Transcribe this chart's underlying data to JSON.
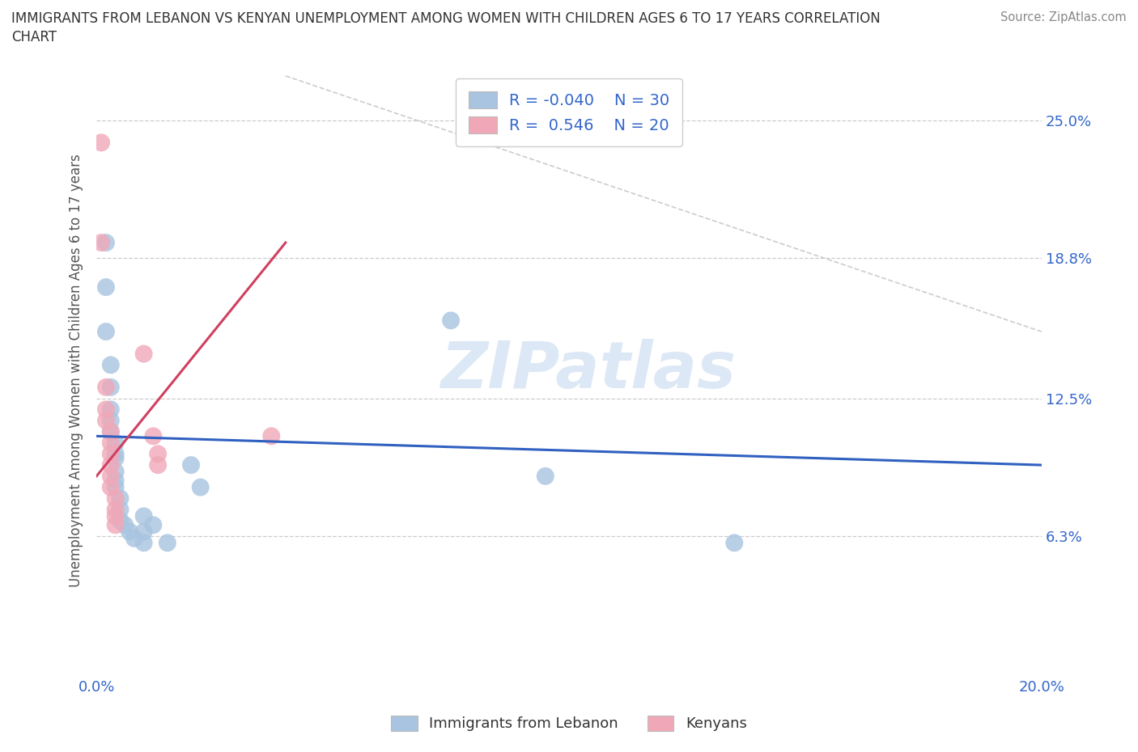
{
  "title": "IMMIGRANTS FROM LEBANON VS KENYAN UNEMPLOYMENT AMONG WOMEN WITH CHILDREN AGES 6 TO 17 YEARS CORRELATION\nCHART",
  "source": "Source: ZipAtlas.com",
  "ylabel": "Unemployment Among Women with Children Ages 6 to 17 years",
  "xlim": [
    0.0,
    0.2
  ],
  "ylim": [
    0.0,
    0.275
  ],
  "xticks": [
    0.0,
    0.05,
    0.1,
    0.15,
    0.2
  ],
  "xticklabels": [
    "0.0%",
    "",
    "",
    "",
    "20.0%"
  ],
  "ytick_positions": [
    0.063,
    0.125,
    0.188,
    0.25
  ],
  "ytick_labels": [
    "6.3%",
    "12.5%",
    "18.8%",
    "25.0%"
  ],
  "watermark": "ZIPatlas",
  "legend_labels": [
    "Immigrants from Lebanon",
    "Kenyans"
  ],
  "color_blue": "#a8c4e0",
  "color_pink": "#f0a8b8",
  "line_blue": "#3060c0",
  "line_pink": "#d04060",
  "R_blue": -0.04,
  "N_blue": 30,
  "R_pink": 0.546,
  "N_pink": 20,
  "blue_line": [
    [
      0.0,
      0.108
    ],
    [
      0.2,
      0.095
    ]
  ],
  "pink_line": [
    [
      0.0,
      0.09
    ],
    [
      0.04,
      0.195
    ]
  ],
  "diag_line": [
    [
      0.04,
      0.27
    ],
    [
      0.2,
      0.155
    ]
  ],
  "blue_points": [
    [
      0.002,
      0.195
    ],
    [
      0.002,
      0.175
    ],
    [
      0.002,
      0.155
    ],
    [
      0.003,
      0.14
    ],
    [
      0.003,
      0.13
    ],
    [
      0.003,
      0.12
    ],
    [
      0.003,
      0.115
    ],
    [
      0.003,
      0.11
    ],
    [
      0.004,
      0.105
    ],
    [
      0.004,
      0.1
    ],
    [
      0.004,
      0.098
    ],
    [
      0.004,
      0.092
    ],
    [
      0.004,
      0.088
    ],
    [
      0.004,
      0.085
    ],
    [
      0.005,
      0.08
    ],
    [
      0.005,
      0.075
    ],
    [
      0.005,
      0.07
    ],
    [
      0.006,
      0.068
    ],
    [
      0.007,
      0.065
    ],
    [
      0.008,
      0.062
    ],
    [
      0.01,
      0.072
    ],
    [
      0.01,
      0.065
    ],
    [
      0.01,
      0.06
    ],
    [
      0.012,
      0.068
    ],
    [
      0.015,
      0.06
    ],
    [
      0.02,
      0.095
    ],
    [
      0.022,
      0.085
    ],
    [
      0.075,
      0.16
    ],
    [
      0.095,
      0.09
    ],
    [
      0.135,
      0.06
    ]
  ],
  "pink_points": [
    [
      0.001,
      0.24
    ],
    [
      0.001,
      0.195
    ],
    [
      0.002,
      0.13
    ],
    [
      0.002,
      0.12
    ],
    [
      0.002,
      0.115
    ],
    [
      0.003,
      0.11
    ],
    [
      0.003,
      0.105
    ],
    [
      0.003,
      0.1
    ],
    [
      0.003,
      0.095
    ],
    [
      0.003,
      0.09
    ],
    [
      0.003,
      0.085
    ],
    [
      0.004,
      0.08
    ],
    [
      0.004,
      0.075
    ],
    [
      0.004,
      0.072
    ],
    [
      0.004,
      0.068
    ],
    [
      0.01,
      0.145
    ],
    [
      0.012,
      0.108
    ],
    [
      0.013,
      0.1
    ],
    [
      0.013,
      0.095
    ],
    [
      0.037,
      0.108
    ]
  ]
}
